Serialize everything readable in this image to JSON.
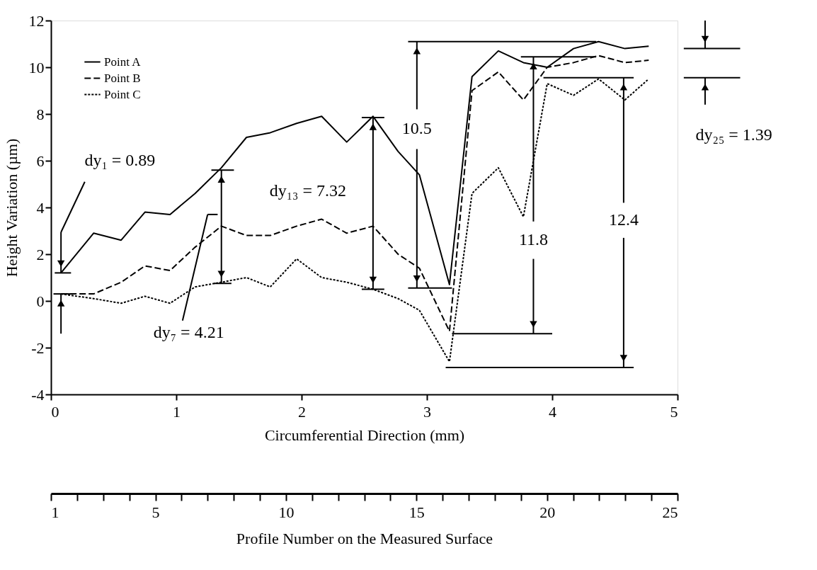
{
  "chart_data": {
    "type": "line",
    "xlabel": "Circumferential Direction  (mm)",
    "ylabel": "Height Variation (µm)",
    "x2label": "Profile Number on the Measured Surface",
    "x": [
      0.08,
      0.34,
      0.56,
      0.75,
      0.95,
      1.15,
      1.36,
      1.56,
      1.75,
      1.96,
      2.16,
      2.36,
      2.57,
      2.77,
      2.94,
      3.18,
      3.36,
      3.57,
      3.77,
      3.96,
      4.17,
      4.37,
      4.58,
      4.77
    ],
    "series": [
      {
        "name": "Point A",
        "color": "#000000",
        "line_style": "solid",
        "values": [
          1.2,
          2.9,
          2.6,
          3.8,
          3.7,
          4.6,
          5.7,
          7.0,
          7.2,
          7.6,
          7.9,
          6.8,
          7.9,
          6.4,
          5.4,
          0.7,
          9.6,
          10.7,
          10.2,
          10.0,
          10.8,
          11.1,
          10.8,
          10.9
        ]
      },
      {
        "name": "Point B",
        "color": "#000000",
        "line_style": "dashed",
        "values": [
          0.3,
          0.3,
          0.8,
          1.5,
          1.3,
          2.3,
          3.2,
          2.8,
          2.8,
          3.2,
          3.5,
          2.9,
          3.2,
          2.0,
          1.4,
          -1.3,
          9.0,
          9.8,
          8.6,
          10.0,
          10.2,
          10.5,
          10.2,
          10.3
        ]
      },
      {
        "name": "Point C",
        "color": "#000000",
        "line_style": "dotted",
        "values": [
          0.3,
          0.1,
          -0.1,
          0.2,
          -0.1,
          0.6,
          0.8,
          1.0,
          0.6,
          1.8,
          1.0,
          0.8,
          0.5,
          0.1,
          -0.4,
          -2.6,
          4.6,
          5.7,
          3.6,
          9.3,
          8.8,
          9.5,
          8.6,
          9.5
        ]
      }
    ],
    "xlim": [
      0,
      5
    ],
    "xticks": [
      0,
      1,
      2,
      3,
      4,
      5
    ],
    "ylim": [
      -4,
      12
    ],
    "yticks": [
      -4,
      -2,
      0,
      2,
      4,
      6,
      8,
      10,
      12
    ],
    "x2lim": [
      1,
      25
    ],
    "x2ticks": [
      1,
      5,
      10,
      15,
      20,
      25
    ],
    "legend": "top left",
    "grid": false,
    "marker": "none",
    "annotations": [
      "dy₁ = 0.89",
      "dy₇ = 4.21",
      "dy₁₃ = 7.32",
      "10.5",
      "11.8",
      "12.4",
      "dy₂₅ = 1.39"
    ]
  }
}
